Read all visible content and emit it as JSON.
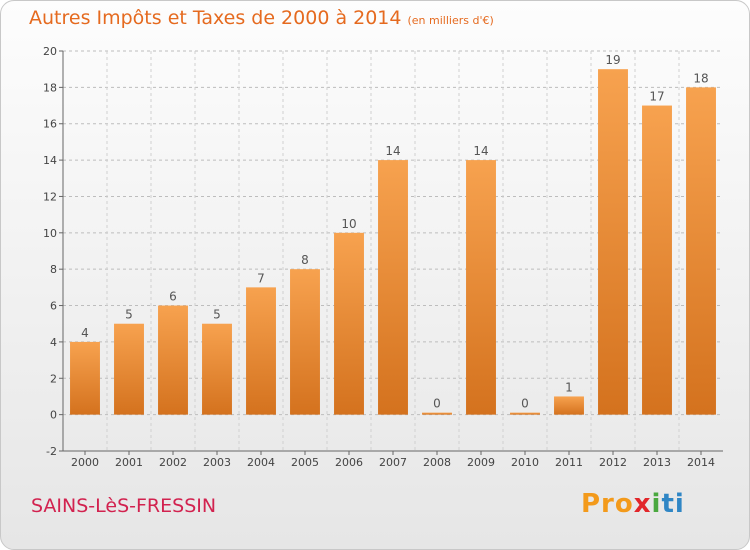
{
  "chart_data": {
    "type": "bar",
    "title": "Autres Impôts et Taxes de 2000 à 2014",
    "subtitle": "(en milliers d'€)",
    "categories": [
      "2000",
      "2001",
      "2002",
      "2003",
      "2004",
      "2005",
      "2006",
      "2007",
      "2008",
      "2009",
      "2010",
      "2011",
      "2012",
      "2013",
      "2014"
    ],
    "values": [
      4,
      5,
      6,
      5,
      7,
      8,
      10,
      14,
      0,
      14,
      0,
      1,
      19,
      17,
      18
    ],
    "ylim": [
      -2,
      20
    ],
    "yticks": [
      -2,
      0,
      2,
      4,
      6,
      8,
      10,
      12,
      14,
      16,
      18,
      20
    ],
    "grid": "horizontal dashed",
    "colors": {
      "bar_top": "#f7a24f",
      "bar_bottom": "#d4721e"
    }
  },
  "footer": {
    "commune": "SAINS-LèS-FRESSIN",
    "logo": [
      "Pro",
      "x",
      "i",
      "ti"
    ]
  }
}
